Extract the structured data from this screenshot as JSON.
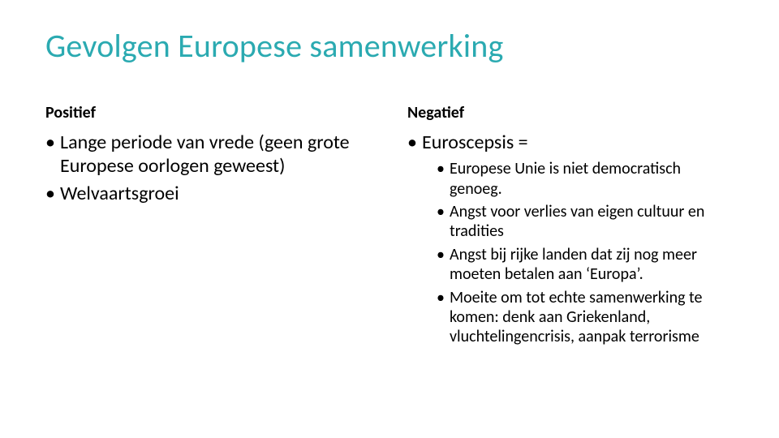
{
  "colors": {
    "title": "#2baab1",
    "text": "#000000",
    "background": "#ffffff"
  },
  "title": "Gevolgen Europese samenwerking",
  "left": {
    "heading": "Positief",
    "items": [
      "Lange periode van vrede (geen grote Europese oorlogen geweest)",
      "Welvaartsgroei"
    ]
  },
  "right": {
    "heading": "Negatief",
    "items": [
      "Euroscepsis ="
    ],
    "subitems": [
      "Europese Unie is niet democratisch genoeg.",
      "Angst voor verlies van eigen cultuur en tradities",
      "Angst bij rijke landen dat zij nog meer moeten betalen aan ‘Europa’.",
      "Moeite om tot echte samenwerking te komen: denk aan Griekenland, vluchtelingencrisis, aanpak terrorisme"
    ]
  }
}
